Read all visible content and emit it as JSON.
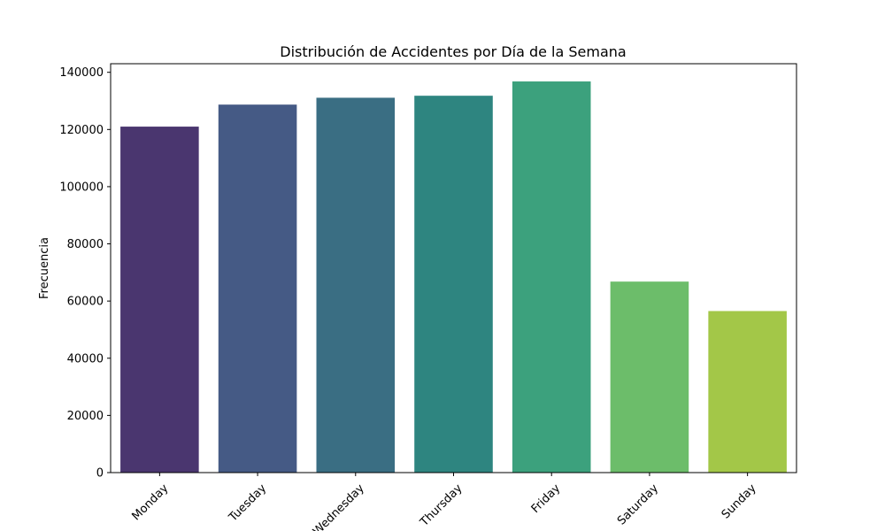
{
  "chart_data": {
    "type": "bar",
    "title": "Distribución de Accidentes por Día de la Semana",
    "xlabel": "",
    "ylabel": "Frecuencia",
    "categories": [
      "Monday",
      "Tuesday",
      "Wednesday",
      "Thursday",
      "Friday",
      "Saturday",
      "Sunday"
    ],
    "values": [
      121000,
      128700,
      131100,
      131800,
      136800,
      66800,
      56500
    ],
    "colors": [
      "#4a366f",
      "#455a85",
      "#3a6e83",
      "#2e8580",
      "#3ca17d",
      "#6cbd6a",
      "#a3c748"
    ],
    "ylim": [
      0,
      143000
    ],
    "yticks": [
      0,
      20000,
      40000,
      60000,
      80000,
      100000,
      120000,
      140000
    ],
    "ytick_labels": [
      "0",
      "20000",
      "40000",
      "60000",
      "80000",
      "100000",
      "120000",
      "140000"
    ],
    "grid": false,
    "legend": "none"
  }
}
